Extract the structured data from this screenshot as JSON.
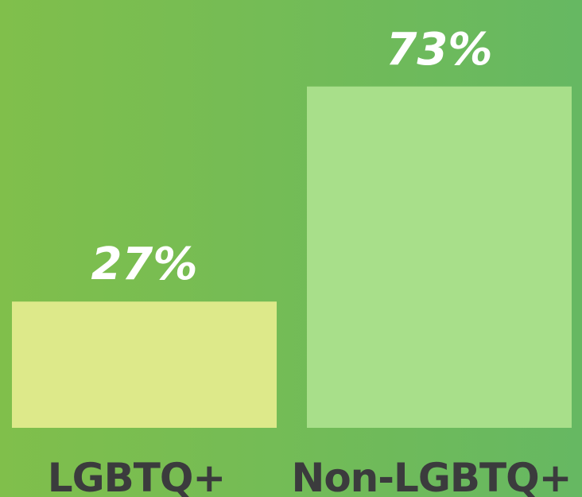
{
  "chart_data": {
    "type": "bar",
    "categories": [
      "LGBTQ+",
      "Non-LGBTQ+"
    ],
    "values": [
      27,
      73
    ],
    "value_labels": [
      "27%",
      "73%"
    ],
    "colors": [
      "#dde98a",
      "#a8df8a"
    ],
    "ylim": [
      0,
      100
    ]
  }
}
